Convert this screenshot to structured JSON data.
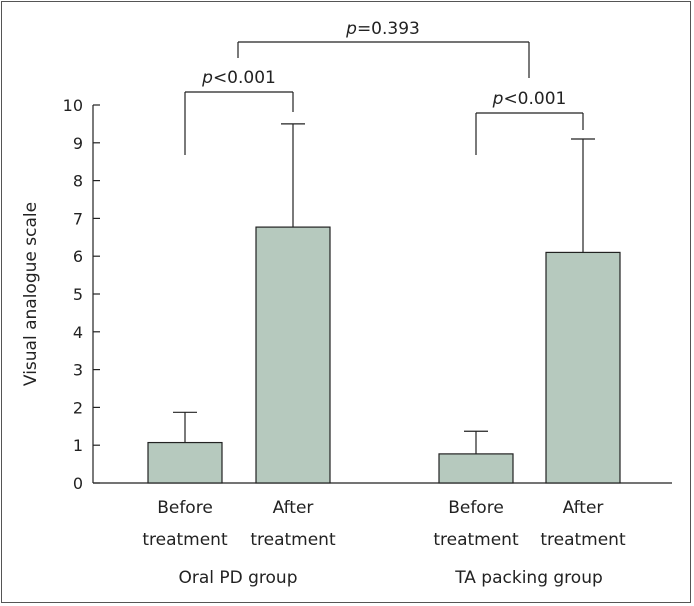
{
  "chart_data": {
    "type": "bar",
    "title": "",
    "xlabel": "",
    "ylabel": "Visual analogue scale",
    "ylim": [
      0,
      10
    ],
    "yticks": [
      "0",
      "1",
      "2",
      "3",
      "4",
      "5",
      "6",
      "7",
      "8",
      "9",
      "10"
    ],
    "bar_color": "#b6c9be",
    "groups": [
      {
        "name": "Oral PD group",
        "bars": [
          {
            "line1": "Before",
            "line2": "treatment",
            "value": 1.07,
            "error": 0.8
          },
          {
            "line1": "After",
            "line2": "treatment",
            "value": 6.77,
            "error": 2.73
          }
        ],
        "comparison": {
          "p": "p",
          "rest": "<0.001"
        }
      },
      {
        "name": "TA packing group",
        "bars": [
          {
            "line1": "Before",
            "line2": "treatment",
            "value": 0.77,
            "error": 0.6
          },
          {
            "line1": "After",
            "line2": "treatment",
            "value": 6.1,
            "error": 3.0
          }
        ],
        "comparison": {
          "p": "p",
          "rest": "<0.001"
        }
      }
    ],
    "between_groups": {
      "p": "p",
      "rest": "=0.393"
    },
    "grid": false,
    "legend": "none"
  }
}
